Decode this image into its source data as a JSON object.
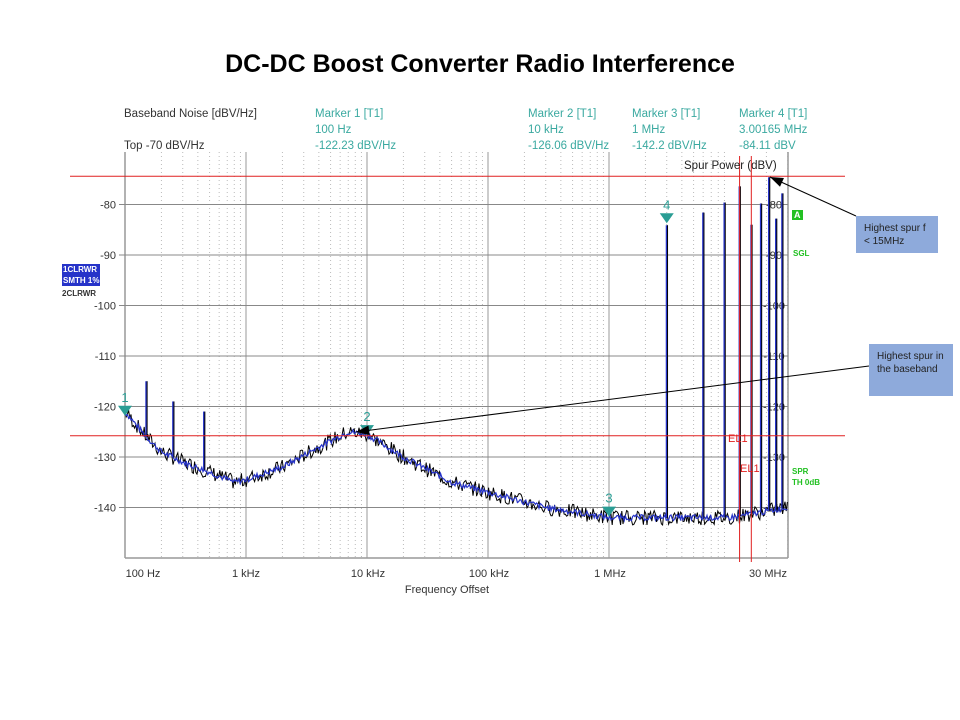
{
  "title": "DC-DC Boost Converter Radio Interference",
  "header": {
    "left_title": "Baseband Noise [dBV/Hz]",
    "left_ref": "Top  -70 dBV/Hz",
    "markers": [
      {
        "label": "Marker 1 [T1]",
        "freq": "100 Hz",
        "level": "-122.23 dBV/Hz"
      },
      {
        "label": "Marker 2 [T1]",
        "freq": "10 kHz",
        "level": "-126.06 dBV/Hz"
      },
      {
        "label": "Marker 3 [T1]",
        "freq": "1 MHz",
        "level": "-142.2 dBV/Hz"
      },
      {
        "label": "Marker 4 [T1]",
        "freq": "3.00165 MHz",
        "level": "-84.11 dBV"
      }
    ]
  },
  "trace_labels": {
    "t1_line1": "1CLRWR",
    "t1_line2": "SMTH 1%",
    "t2": "2CLRWR"
  },
  "side_labels": {
    "a": "A",
    "sgl": "SGL",
    "spr": "SPR",
    "th": "TH 0dB"
  },
  "limit_labels": [
    "EL1",
    "EL1"
  ],
  "colors": {
    "trace1": "#2633c9",
    "trace2": "#000000",
    "marker": "#2a9d94",
    "limit": "#e02020",
    "status": "#22c022",
    "callout": "#8eaadb"
  },
  "callouts": {
    "spur_rf": "Highest spur f < 15MHz",
    "spur_bb": "Highest spur in the baseband"
  },
  "chart_data": {
    "type": "line",
    "xlabel": "Frequency Offset",
    "ylabel_right": "Spur Power (dBV)",
    "x_scale": "log",
    "xlim_hz": [
      100,
      30000000
    ],
    "ylim": [
      -150,
      -70
    ],
    "grid": true,
    "x_ticks": [
      {
        "value": 100,
        "label": "100 Hz"
      },
      {
        "value": 1000,
        "label": "1 kHz"
      },
      {
        "value": 10000,
        "label": "10 kHz"
      },
      {
        "value": 100000,
        "label": "100 kHz"
      },
      {
        "value": 1000000,
        "label": "1 MHz"
      },
      {
        "value": 30000000,
        "label": "30 MHz"
      }
    ],
    "y_ticks_left": [
      "-80",
      "-90",
      "-100",
      "-110",
      "-120",
      "-130",
      "-140"
    ],
    "y_ticks_right": [
      "-80",
      "-90",
      "-100",
      "-110",
      "-120",
      "-130",
      "-140"
    ],
    "noise_floor": {
      "x_hz": [
        100,
        150,
        200,
        300,
        500,
        800,
        1000,
        2000,
        4000,
        7000,
        10000,
        20000,
        50000,
        100000,
        300000,
        1000000,
        3000000,
        10000000,
        30000000
      ],
      "y_dbv": [
        -121,
        -126,
        -129,
        -131,
        -133,
        -135,
        -134.5,
        -132,
        -128,
        -125,
        -125.5,
        -130,
        -135,
        -137,
        -140,
        -142,
        -142,
        -142,
        -140
      ]
    },
    "baseband_spurs": {
      "x_hz": [
        150,
        250,
        450
      ],
      "y_dbv": [
        -115,
        -119,
        -121
      ]
    },
    "rf_spurs": {
      "x_hz": [
        3000000,
        6000000,
        9000000,
        12000000,
        15000000,
        18000000,
        21000000,
        24000000,
        27000000
      ],
      "y_dbv": [
        -84.1,
        -81.6,
        -79.6,
        -76.4,
        -84,
        -79.8,
        -74.6,
        -82.8,
        -77.8
      ]
    },
    "markers": [
      {
        "id": "1",
        "x_hz": 100,
        "y_dbv": -122.23
      },
      {
        "id": "2",
        "x_hz": 10000,
        "y_dbv": -126.06
      },
      {
        "id": "3",
        "x_hz": 1000000,
        "y_dbv": -142.2
      },
      {
        "id": "4",
        "x_hz": 3001650,
        "y_dbv": -84.11
      }
    ],
    "limit_lines_dbv": [
      -74.4,
      -125.8
    ],
    "limit_lines_hz": [
      12000000,
      15000000
    ]
  }
}
